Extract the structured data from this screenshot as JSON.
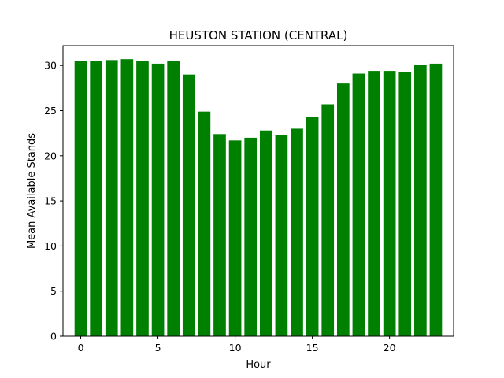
{
  "chart_data": {
    "type": "bar",
    "title": "HEUSTON STATION (CENTRAL)",
    "xlabel": "Hour",
    "ylabel": "Mean Available Stands",
    "x": [
      0,
      1,
      2,
      3,
      4,
      5,
      6,
      7,
      8,
      9,
      10,
      11,
      12,
      13,
      14,
      15,
      16,
      17,
      18,
      19,
      20,
      21,
      22,
      23
    ],
    "values": [
      30.5,
      30.5,
      30.6,
      30.7,
      30.5,
      30.2,
      30.5,
      29.0,
      24.9,
      22.4,
      21.7,
      22.0,
      22.8,
      22.3,
      23.0,
      24.3,
      25.7,
      28.0,
      29.1,
      29.4,
      29.4,
      29.3,
      30.1,
      30.2
    ],
    "color": "#008000",
    "xlim": [
      -1.15,
      24.15
    ],
    "ylim": [
      0,
      32.2
    ],
    "xticks": [
      0,
      5,
      10,
      15,
      20
    ],
    "yticks": [
      0,
      5,
      10,
      15,
      20,
      25,
      30
    ],
    "grid": false,
    "legend": "none"
  }
}
